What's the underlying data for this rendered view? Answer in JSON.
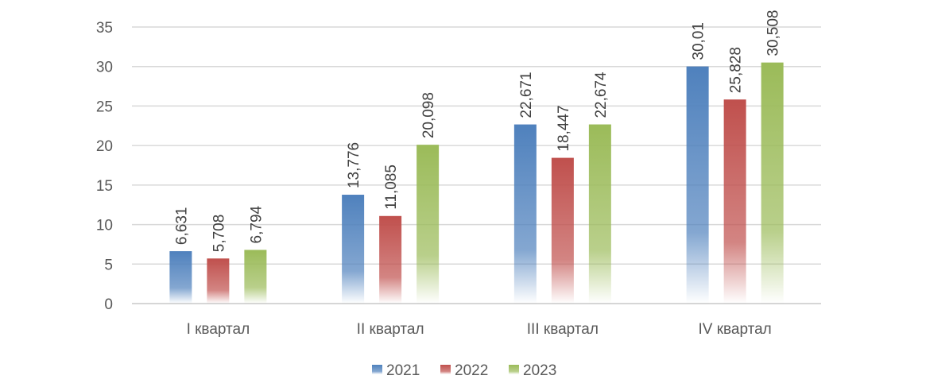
{
  "chart_data": {
    "type": "bar",
    "title": "",
    "xlabel": "",
    "ylabel": "",
    "categories": [
      "I квартал",
      "II квартал",
      "III квартал",
      "IV квартал"
    ],
    "series": [
      {
        "name": "2021",
        "color": "#4F81BD",
        "values": [
          6.631,
          13.776,
          22.671,
          30.01
        ],
        "labels": [
          "6,631",
          "13,776",
          "22,671",
          "30,01"
        ]
      },
      {
        "name": "2022",
        "color": "#C0504D",
        "values": [
          5.708,
          11.085,
          18.447,
          25.828
        ],
        "labels": [
          "5,708",
          "11,085",
          "18,447",
          "25,828"
        ]
      },
      {
        "name": "2023",
        "color": "#9BBB59",
        "values": [
          6.794,
          20.098,
          22.674,
          30.508
        ],
        "labels": [
          "6,794",
          "20,098",
          "22,674",
          "30,508"
        ]
      }
    ],
    "ylim": [
      0,
      35
    ],
    "yticks": [
      0,
      5,
      10,
      15,
      20,
      25,
      30,
      35
    ],
    "grid": true,
    "legend": "bottom",
    "data_labels": "rotated-vertical"
  }
}
